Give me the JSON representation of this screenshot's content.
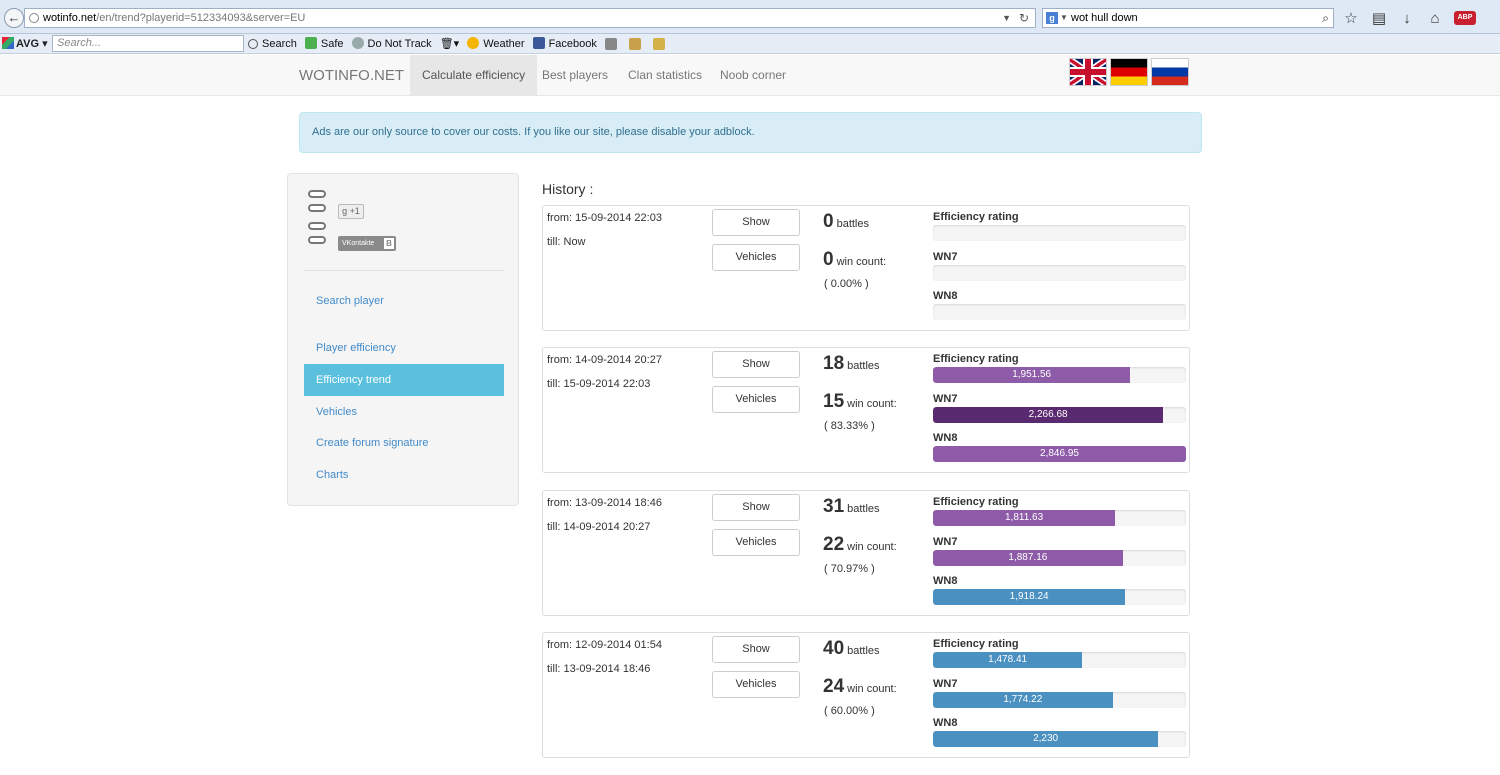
{
  "browser": {
    "url_host": "wotinfo.net",
    "url_path": "/en/trend?playerid=512334093&server=EU",
    "search_text": "wot hull down"
  },
  "toolbar": {
    "avg_label": "AVG",
    "search_placeholder": "Search...",
    "search_label": "Search",
    "safe_label": "Safe",
    "dnt_label": "Do Not Track",
    "weather_label": "Weather",
    "facebook_label": "Facebook"
  },
  "nav": {
    "brand": "WOTINFO.NET",
    "items": [
      "Calculate efficiency",
      "Best players",
      "Clan statistics",
      "Noob corner"
    ]
  },
  "alert": "Ads are our only source to cover our costs. If you like our site, please disable your adblock.",
  "sidebar": {
    "gplus": "+1",
    "vk": "VKontakte",
    "vk_badge": "B",
    "search_player": "Search player",
    "links": [
      "Player efficiency",
      "Efficiency trend",
      "Vehicles",
      "Create forum signature",
      "Charts"
    ]
  },
  "history": {
    "title": "History :",
    "show_label": "Show",
    "vehicles_label": "Vehicles",
    "battles_label": "battles",
    "wins_label": "win count:",
    "eff_label": "Efficiency rating",
    "wn7_label": "WN7",
    "wn8_label": "WN8",
    "entries": [
      {
        "from": "from: 15-09-2014 22:03",
        "till": "till: Now",
        "battles": "0",
        "wins": "0",
        "pct": "( 0.00% )",
        "eff": {
          "text": "",
          "fill": 0,
          "color": "#8e5ba8"
        },
        "wn7": {
          "text": "",
          "fill": 0,
          "color": "#8e5ba8"
        },
        "wn8": {
          "text": "",
          "fill": 0,
          "color": "#8e5ba8"
        }
      },
      {
        "from": "from: 14-09-2014 20:27",
        "till": "till: 15-09-2014 22:03",
        "battles": "18",
        "wins": "15",
        "pct": "( 83.33% )",
        "eff": {
          "text": "1,951.56",
          "fill": 0.78,
          "color": "#8e5ba8"
        },
        "wn7": {
          "text": "2,266.68",
          "fill": 0.91,
          "color": "#5a2a70"
        },
        "wn8": {
          "text": "2,846.95",
          "fill": 1.0,
          "color": "#8e5ba8"
        }
      },
      {
        "from": "from: 13-09-2014 18:46",
        "till": "till: 14-09-2014 20:27",
        "battles": "31",
        "wins": "22",
        "pct": "( 70.97% )",
        "eff": {
          "text": "1,811.63",
          "fill": 0.72,
          "color": "#8e5ba8"
        },
        "wn7": {
          "text": "1,887.16",
          "fill": 0.75,
          "color": "#8e5ba8"
        },
        "wn8": {
          "text": "1,918.24",
          "fill": 0.76,
          "color": "#4a90c0"
        }
      },
      {
        "from": "from: 12-09-2014 01:54",
        "till": "till: 13-09-2014 18:46",
        "battles": "40",
        "wins": "24",
        "pct": "( 60.00% )",
        "eff": {
          "text": "1,478.41",
          "fill": 0.59,
          "color": "#4a90c0"
        },
        "wn7": {
          "text": "1,774.22",
          "fill": 0.71,
          "color": "#4a90c0"
        },
        "wn8": {
          "text": "2,230",
          "fill": 0.89,
          "color": "#4a90c0"
        }
      }
    ]
  }
}
